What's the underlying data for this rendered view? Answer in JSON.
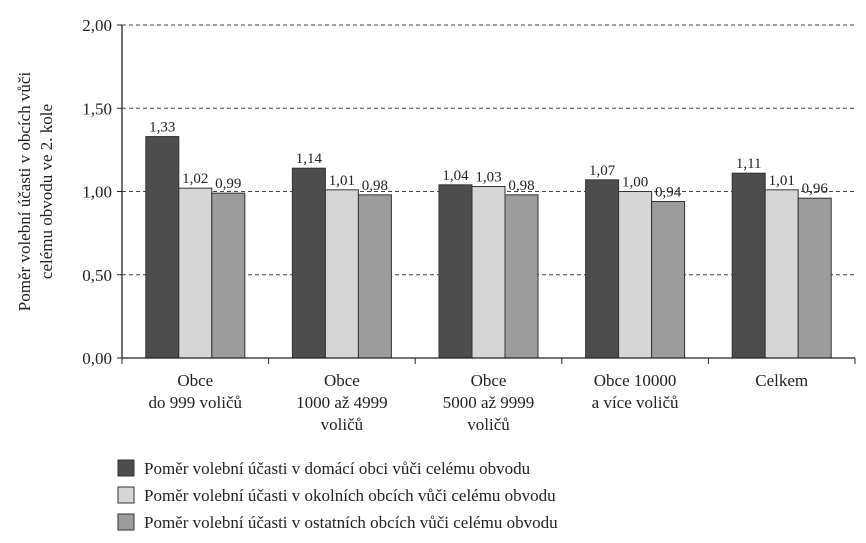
{
  "chart_data": {
    "type": "bar",
    "ylabel": [
      "Poměr volební účasti v obcích vůči",
      "celému obvodu ve 2. kole"
    ],
    "categories": [
      [
        "Obce",
        "do 999 voličů"
      ],
      [
        "Obce",
        "1000 až 4999",
        "voličů"
      ],
      [
        "Obce",
        "5000 až 9999",
        "voličů"
      ],
      [
        "Obce 10000",
        "a více voličů"
      ],
      [
        "Celkem"
      ]
    ],
    "series": [
      {
        "name": "Poměr volební účasti v domácí obci vůči celému obvodu",
        "color": "#4d4d4d",
        "values": [
          1.33,
          1.14,
          1.04,
          1.07,
          1.11
        ],
        "value_labels": [
          "1,33",
          "1,14",
          "1,04",
          "1,07",
          "1,11"
        ]
      },
      {
        "name": "Poměr volební účasti v okolních obcích vůči celému obvodu",
        "color": "#d6d6d6",
        "values": [
          1.02,
          1.01,
          1.03,
          1.0,
          1.01
        ],
        "value_labels": [
          "1,02",
          "1,01",
          "1,03",
          "1,00",
          "1,01"
        ]
      },
      {
        "name": "Poměr volební účasti v ostatních obcích vůči celému obvodu",
        "color": "#9c9c9c",
        "values": [
          0.99,
          0.98,
          0.98,
          0.94,
          0.96
        ],
        "value_labels": [
          "0,99",
          "0,98",
          "0,98",
          "0,94",
          "0,96"
        ]
      }
    ],
    "ylim": [
      0,
      2
    ],
    "yticks": [
      {
        "value": 0,
        "label": "0,00"
      },
      {
        "value": 0.5,
        "label": "0,50"
      },
      {
        "value": 1,
        "label": "1,00"
      },
      {
        "value": 1.5,
        "label": "1,50"
      },
      {
        "value": 2,
        "label": "2,00"
      }
    ],
    "grid": true,
    "legend": "bottom"
  }
}
